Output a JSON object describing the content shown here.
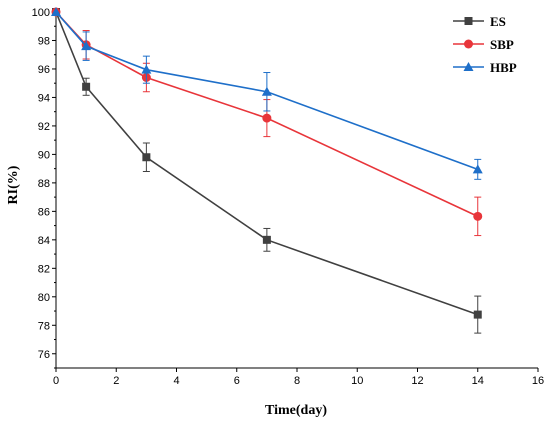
{
  "chart_data": {
    "type": "line",
    "title": "",
    "xlabel": "Time(day)",
    "ylabel": "RI(%)",
    "xlim": [
      0,
      16
    ],
    "ylim": [
      75,
      100
    ],
    "xticks": [
      0,
      2,
      4,
      6,
      8,
      10,
      12,
      14,
      16
    ],
    "yticks": [
      76,
      78,
      80,
      82,
      84,
      86,
      88,
      90,
      92,
      94,
      96,
      98,
      100
    ],
    "grid": false,
    "legend_position": "top-right",
    "x": [
      0,
      1,
      3,
      7,
      14
    ],
    "series": [
      {
        "name": "ES",
        "marker": "square",
        "color": "#404040",
        "values": [
          100,
          94.75,
          89.8,
          84.0,
          78.75
        ],
        "errors": [
          0,
          0.6,
          1.0,
          0.8,
          1.3
        ]
      },
      {
        "name": "SBP",
        "marker": "circle",
        "color": "#e8353a",
        "values": [
          100,
          97.7,
          95.4,
          92.55,
          85.65
        ],
        "errors": [
          0,
          1.0,
          1.0,
          1.3,
          1.35
        ]
      },
      {
        "name": "HBP",
        "marker": "triangle",
        "color": "#1e6fc9",
        "values": [
          100,
          97.6,
          95.95,
          94.4,
          88.95
        ],
        "errors": [
          0,
          1.0,
          0.95,
          1.35,
          0.7
        ]
      }
    ]
  }
}
